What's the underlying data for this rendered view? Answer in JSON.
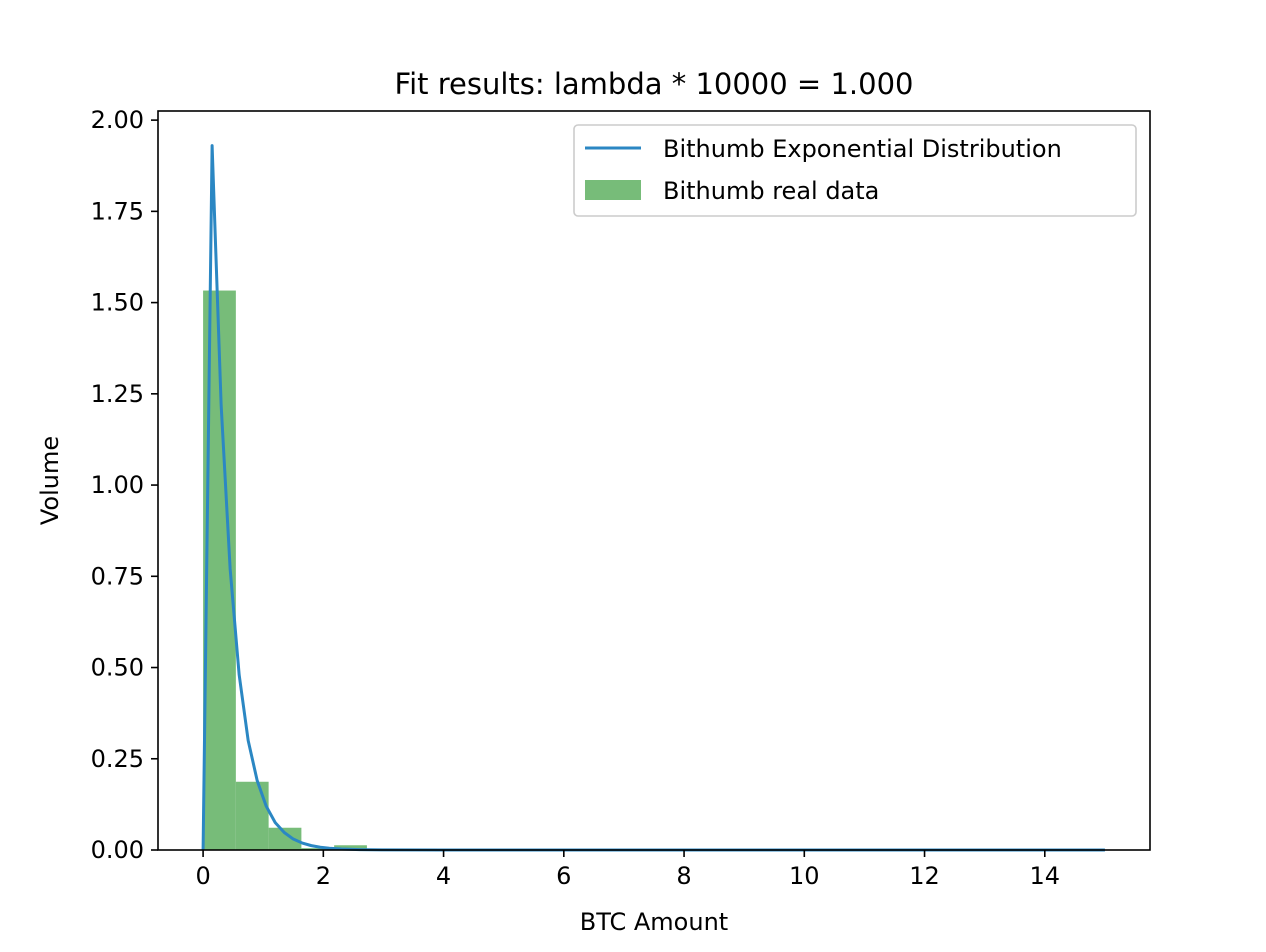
{
  "chart_data": {
    "type": "bar",
    "title": "Fit results: lambda * 10000 = 1.000",
    "xlabel": "BTC Amount",
    "ylabel": "Volume",
    "xlim": [
      -0.75,
      15.75
    ],
    "ylim": [
      0,
      2.025
    ],
    "xticks": [
      0,
      2,
      4,
      6,
      8,
      10,
      12,
      14
    ],
    "xtick_labels": [
      "0",
      "2",
      "4",
      "6",
      "8",
      "10",
      "12",
      "14"
    ],
    "yticks": [
      0,
      0.25,
      0.5,
      0.75,
      1.0,
      1.25,
      1.5,
      1.75,
      2.0
    ],
    "ytick_labels": [
      "0.00",
      "0.25",
      "0.50",
      "0.75",
      "1.00",
      "1.25",
      "1.50",
      "1.75",
      "2.00"
    ],
    "grid": false,
    "legend_position": "top-right",
    "histogram": {
      "name": "Bithumb real data",
      "color": "#77bc79",
      "bins": [
        {
          "x0": 0.0,
          "x1": 0.545,
          "value": 1.533
        },
        {
          "x0": 0.545,
          "x1": 1.09,
          "value": 0.187
        },
        {
          "x0": 1.09,
          "x1": 1.635,
          "value": 0.061
        },
        {
          "x0": 1.635,
          "x1": 2.18,
          "value": 0.005
        },
        {
          "x0": 2.18,
          "x1": 2.725,
          "value": 0.013
        },
        {
          "x0": 2.725,
          "x1": 3.27,
          "value": 0.002
        },
        {
          "x0": 3.27,
          "x1": 3.815,
          "value": 0.001
        },
        {
          "x0": 3.815,
          "x1": 4.36,
          "value": 0.002
        }
      ]
    },
    "line": {
      "name": "Bithumb Exponential Distribution",
      "color": "#2b87c3",
      "x": [
        0.0,
        0.15,
        0.3,
        0.45,
        0.6,
        0.75,
        0.9,
        1.05,
        1.2,
        1.35,
        1.5,
        1.65,
        1.8,
        1.95,
        2.1,
        2.3,
        2.6,
        3.0,
        4.0,
        6.0,
        8.0,
        10.0,
        12.0,
        14.0,
        15.0
      ],
      "y": [
        0.0,
        1.93,
        1.22,
        0.77,
        0.48,
        0.3,
        0.19,
        0.12,
        0.075,
        0.048,
        0.03,
        0.019,
        0.012,
        0.0075,
        0.0047,
        0.0026,
        0.0011,
        0.0003,
        0.0,
        0.0,
        0.0,
        0.0,
        0.0,
        0.0,
        0.0
      ]
    }
  }
}
